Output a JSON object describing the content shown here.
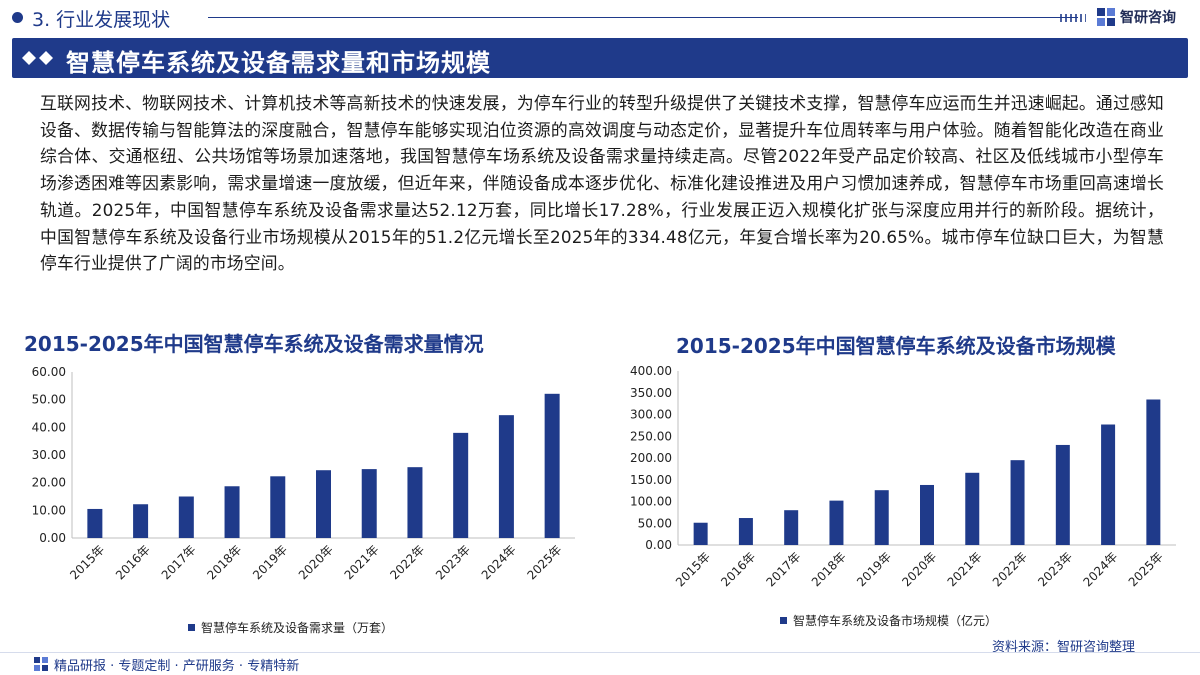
{
  "header": {
    "section_title": "3. 行业发展现状",
    "brand_name": "智研咨询"
  },
  "banner": {
    "title": "智慧停车系统及设备需求量和市场规模"
  },
  "body_text": "互联网技术、物联网技术、计算机技术等高新技术的快速发展，为停车行业的转型升级提供了关键技术支撑，智慧停车应运而生并迅速崛起。通过感知设备、数据传输与智能算法的深度融合，智慧停车能够实现泊位资源的高效调度与动态定价，显著提升车位周转率与用户体验。随着智能化改造在商业综合体、交通枢纽、公共场馆等场景加速落地，我国智慧停车场系统及设备需求量持续走高。尽管2022年受产品定价较高、社区及低线城市小型停车场渗透困难等因素影响，需求量增速一度放缓，但近年来，伴随设备成本逐步优化、标准化建设推进及用户习惯加速养成，智慧停车市场重回高速增长轨道。2025年，中国智慧停车系统及设备需求量达52.12万套，同比增长17.28%，行业发展正迈入规模化扩张与深度应用并行的新阶段。据统计，中国智慧停车系统及设备行业市场规模从2015年的51.2亿元增长至2025年的334.48亿元，年复合增长率为20.65%。城市停车位缺口巨大，为智慧停车行业提供了广阔的市场空间。",
  "colors": {
    "brand": "#1f3a8a",
    "bar": "#1f3a8a",
    "axis": "#bfbfbf"
  },
  "chart_data": [
    {
      "type": "bar",
      "title": "2015-2025年中国智慧停车系统及设备需求量情况",
      "categories": [
        "2015年",
        "2016年",
        "2017年",
        "2018年",
        "2019年",
        "2020年",
        "2021年",
        "2022年",
        "2023年",
        "2024年",
        "2025年"
      ],
      "series": [
        {
          "name": "智慧停车系统及设备需求量（万套）",
          "values": [
            10.5,
            12.2,
            15.0,
            18.7,
            22.3,
            24.5,
            24.9,
            25.6,
            38.0,
            44.4,
            52.12
          ]
        }
      ],
      "y_ticks": [
        "0.00",
        "10.00",
        "20.00",
        "30.00",
        "40.00",
        "50.00",
        "60.00"
      ],
      "ylim": [
        0,
        60
      ],
      "grid": false,
      "legend_position": "bottom"
    },
    {
      "type": "bar",
      "title": "2015-2025年中国智慧停车系统及设备市场规模",
      "categories": [
        "2015年",
        "2016年",
        "2017年",
        "2018年",
        "2019年",
        "2020年",
        "2021年",
        "2022年",
        "2023年",
        "2024年",
        "2025年"
      ],
      "series": [
        {
          "name": "智慧停车系统及设备市场规模（亿元）",
          "values": [
            51.2,
            62.0,
            80.0,
            102.0,
            126.0,
            138.0,
            166.0,
            195.0,
            230.0,
            277.0,
            334.48
          ]
        }
      ],
      "y_ticks": [
        "0.00",
        "50.00",
        "100.00",
        "150.00",
        "200.00",
        "250.00",
        "300.00",
        "350.00",
        "400.00"
      ],
      "ylim": [
        0,
        400
      ],
      "grid": false,
      "legend_position": "bottom"
    }
  ],
  "source": "资料来源：智研咨询整理",
  "footer": {
    "text": "精品研报 · 专题定制 · 产研服务 · 专精特新"
  },
  "icons": {
    "brand_logo": "zhiyan-logo-icon",
    "banner_diamonds": "double-diamond-icon",
    "footer_logo": "zhiyan-small-logo-icon"
  }
}
